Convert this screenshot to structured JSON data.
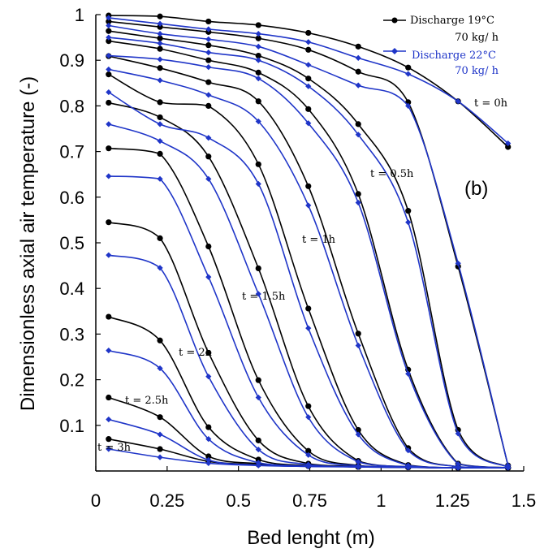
{
  "chart_data": {
    "type": "line",
    "xlabel": "Bed lenght (m)",
    "ylabel": "Dimensionless axial air temperature (-)",
    "xlim": [
      0,
      1.5
    ],
    "ylim": [
      0,
      1
    ],
    "x_ticks": [
      "0",
      "0.25",
      "0.5",
      "0.75",
      "1",
      "1.25",
      "1.5"
    ],
    "y_ticks": [
      "0",
      "0.1",
      "0.2",
      "0.3",
      "0.4",
      "0.5",
      "0.6",
      "0.7",
      "0.8",
      "0.9",
      "1"
    ],
    "panel_label": "(b)",
    "colors": {
      "discharge_19": "#000000",
      "discharge_22": "#1f35c8"
    },
    "legend": [
      {
        "line1": "Discharge 19°C",
        "line2": "70 kg/ h",
        "color": "#000000",
        "marker": "circle"
      },
      {
        "line1": "Discharge 22°C",
        "line2": "70 kg/ h",
        "color": "#1f35c8",
        "marker": "diamond"
      }
    ],
    "annotations": [
      "t = 0h",
      "t = 0.5h",
      "t = 1h",
      "t = 1.5h",
      "t = 2h",
      "t = 2.5h",
      "t = 3h"
    ],
    "x": [
      0.045,
      0.225,
      0.395,
      0.57,
      0.745,
      0.92,
      1.095,
      1.27,
      1.445
    ],
    "series": [
      {
        "name": "Discharge 19°C",
        "color": "#000000",
        "marker": "circle",
        "curves": [
          [
            0.998,
            0.996,
            0.985,
            0.977,
            0.96,
            0.93,
            0.884,
            0.81,
            0.71
          ],
          [
            0.985,
            0.973,
            0.962,
            0.948,
            0.923,
            0.875,
            0.808,
            0.448,
            0.012
          ],
          [
            0.964,
            0.948,
            0.933,
            0.91,
            0.86,
            0.76,
            0.57,
            0.09,
            0.008
          ],
          [
            0.942,
            0.925,
            0.9,
            0.873,
            0.793,
            0.607,
            0.222,
            0.016,
            0.007
          ],
          [
            0.909,
            0.883,
            0.852,
            0.81,
            0.624,
            0.301,
            0.05,
            0.009,
            0.007
          ],
          [
            0.869,
            0.808,
            0.8,
            0.672,
            0.356,
            0.09,
            0.013,
            0.007,
            0.007
          ],
          [
            0.807,
            0.775,
            0.689,
            0.444,
            0.142,
            0.022,
            0.009,
            0.007,
            0.007
          ],
          [
            0.707,
            0.695,
            0.492,
            0.199,
            0.044,
            0.012,
            0.008,
            0.007,
            0.007
          ],
          [
            0.545,
            0.51,
            0.259,
            0.067,
            0.016,
            0.01,
            0.008,
            0.007,
            0.007
          ],
          [
            0.338,
            0.286,
            0.096,
            0.025,
            0.012,
            0.009,
            0.008,
            0.007,
            0.007
          ],
          [
            0.161,
            0.118,
            0.032,
            0.016,
            0.011,
            0.009,
            0.008,
            0.007,
            0.007
          ],
          [
            0.07,
            0.048,
            0.021,
            0.014,
            0.011,
            0.009,
            0.008,
            0.007,
            0.007
          ]
        ]
      },
      {
        "name": "Discharge 22°C",
        "color": "#1f35c8",
        "marker": "diamond",
        "curves": [
          [
            0.993,
            0.98,
            0.968,
            0.958,
            0.94,
            0.905,
            0.87,
            0.81,
            0.718
          ],
          [
            0.976,
            0.958,
            0.946,
            0.93,
            0.89,
            0.845,
            0.8,
            0.455,
            0.012
          ],
          [
            0.95,
            0.937,
            0.917,
            0.9,
            0.843,
            0.737,
            0.545,
            0.082,
            0.008
          ],
          [
            0.91,
            0.902,
            0.885,
            0.86,
            0.762,
            0.588,
            0.213,
            0.015,
            0.007
          ],
          [
            0.88,
            0.856,
            0.824,
            0.766,
            0.582,
            0.275,
            0.045,
            0.009,
            0.007
          ],
          [
            0.83,
            0.76,
            0.73,
            0.629,
            0.313,
            0.08,
            0.012,
            0.007,
            0.007
          ],
          [
            0.76,
            0.723,
            0.64,
            0.388,
            0.118,
            0.02,
            0.009,
            0.007,
            0.007
          ],
          [
            0.646,
            0.64,
            0.425,
            0.161,
            0.035,
            0.011,
            0.008,
            0.007,
            0.007
          ],
          [
            0.473,
            0.445,
            0.207,
            0.047,
            0.014,
            0.009,
            0.008,
            0.007,
            0.007
          ],
          [
            0.264,
            0.225,
            0.07,
            0.018,
            0.011,
            0.009,
            0.008,
            0.007,
            0.007
          ],
          [
            0.113,
            0.08,
            0.024,
            0.013,
            0.01,
            0.009,
            0.008,
            0.007,
            0.007
          ],
          [
            0.048,
            0.03,
            0.017,
            0.012,
            0.01,
            0.009,
            0.008,
            0.007,
            0.007
          ]
        ]
      }
    ]
  }
}
